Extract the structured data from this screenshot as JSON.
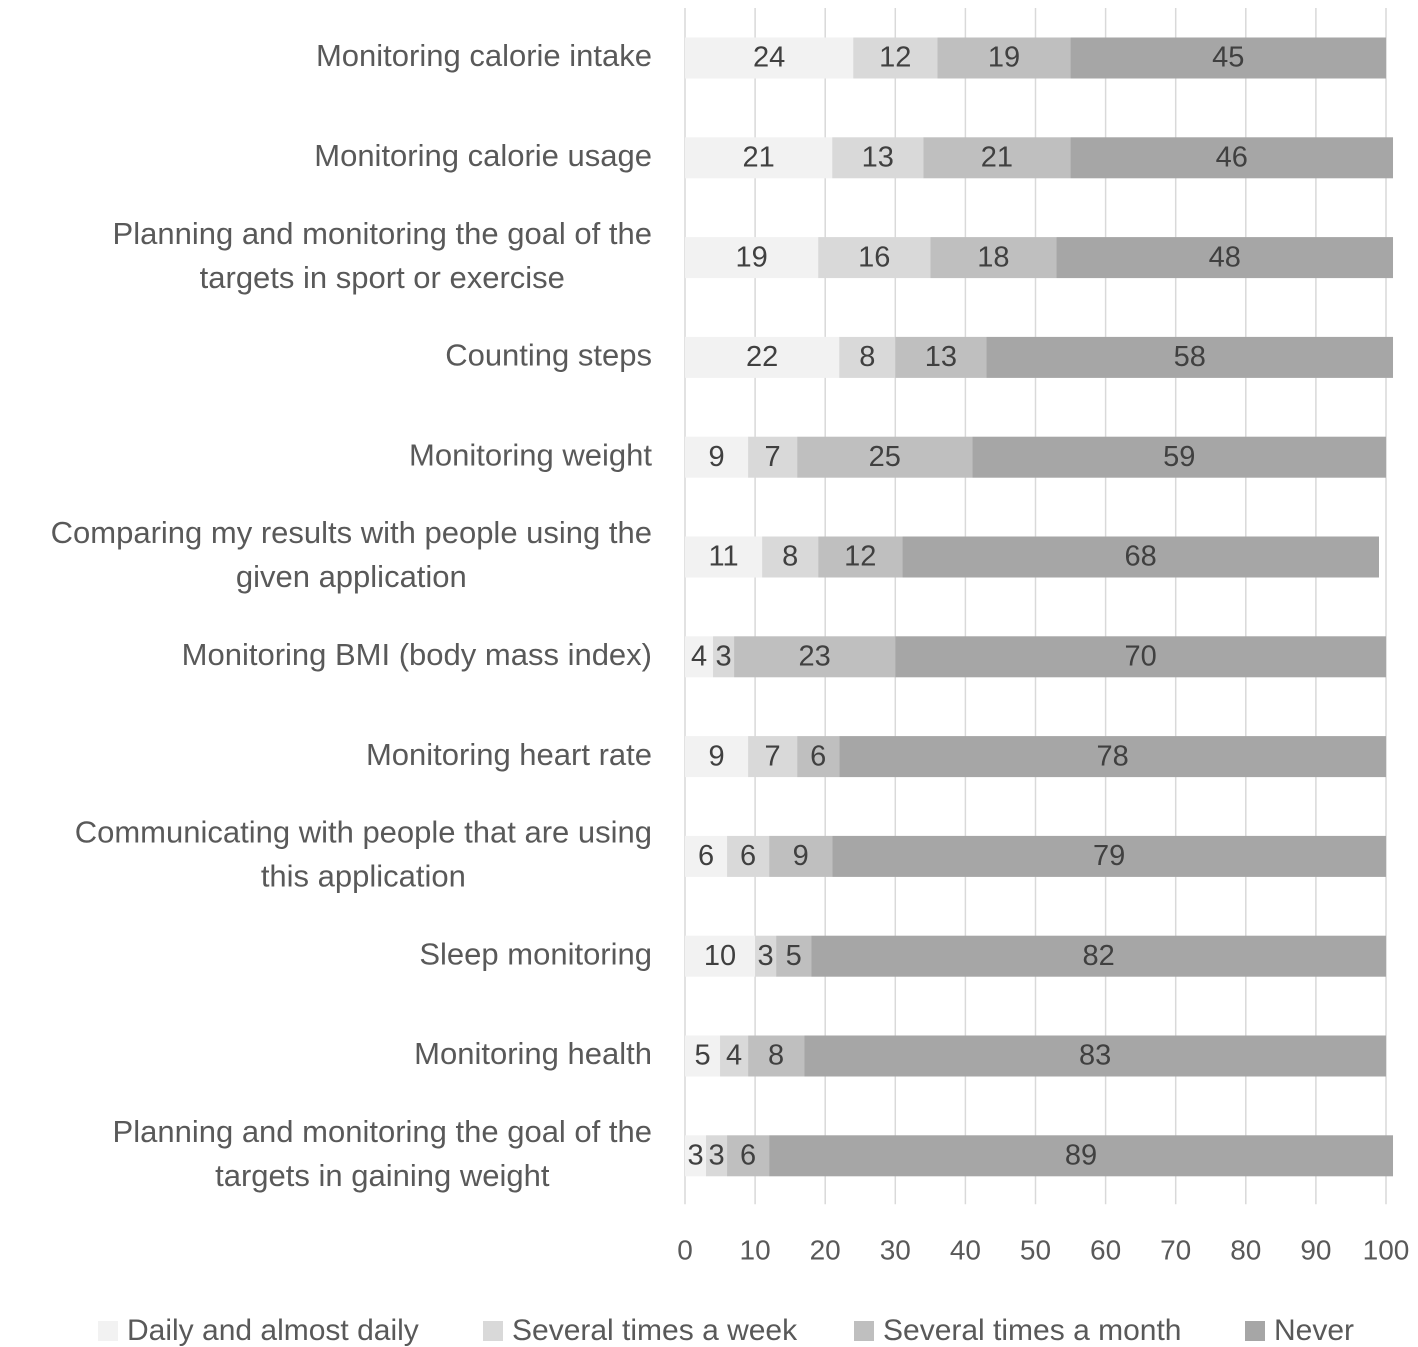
{
  "chart_data": {
    "type": "bar",
    "orientation": "horizontal",
    "stacked": true,
    "categories": [
      "Monitoring calorie intake",
      "Monitoring calorie usage",
      "Planning and monitoring the goal of the targets in sport or exercise",
      "Counting steps",
      "Monitoring weight",
      "Comparing my results with people using the given application",
      "Monitoring BMI (body mass index)",
      "Monitoring heart rate",
      "Communicating with people that are using this application",
      "Sleep monitoring",
      "Monitoring health",
      "Planning and monitoring the goal of the targets in gaining weight"
    ],
    "category_lines": [
      [
        "Monitoring calorie intake"
      ],
      [
        "Monitoring calorie usage"
      ],
      [
        "Planning and monitoring the goal of the",
        "targets in sport or exercise"
      ],
      [
        "Counting steps"
      ],
      [
        "Monitoring weight"
      ],
      [
        "Comparing my results with people using the",
        "given application"
      ],
      [
        "Monitoring BMI (body mass index)"
      ],
      [
        "Monitoring heart rate"
      ],
      [
        "Communicating with people that are using",
        "this application"
      ],
      [
        "Sleep monitoring"
      ],
      [
        "Monitoring health"
      ],
      [
        "Planning and monitoring the goal of the",
        "targets in gaining weight"
      ]
    ],
    "series": [
      {
        "name": "Daily and almost daily",
        "color": "#f2f2f2",
        "values": [
          24,
          21,
          19,
          22,
          9,
          11,
          4,
          9,
          6,
          10,
          5,
          3
        ]
      },
      {
        "name": "Several times a week",
        "color": "#d9d9d9",
        "values": [
          12,
          13,
          16,
          8,
          7,
          8,
          3,
          7,
          6,
          3,
          4,
          3
        ]
      },
      {
        "name": "Several times a month",
        "color": "#bfbfbf",
        "values": [
          19,
          21,
          18,
          13,
          25,
          12,
          23,
          6,
          9,
          5,
          8,
          6
        ]
      },
      {
        "name": "Never",
        "color": "#a6a6a6",
        "values": [
          45,
          46,
          48,
          58,
          59,
          68,
          70,
          78,
          79,
          82,
          83,
          89
        ]
      }
    ],
    "xlim": [
      0,
      100
    ],
    "x_ticks": [
      0,
      10,
      20,
      30,
      40,
      50,
      60,
      70,
      80,
      90,
      100
    ],
    "grid": true,
    "legend_position": "bottom"
  }
}
